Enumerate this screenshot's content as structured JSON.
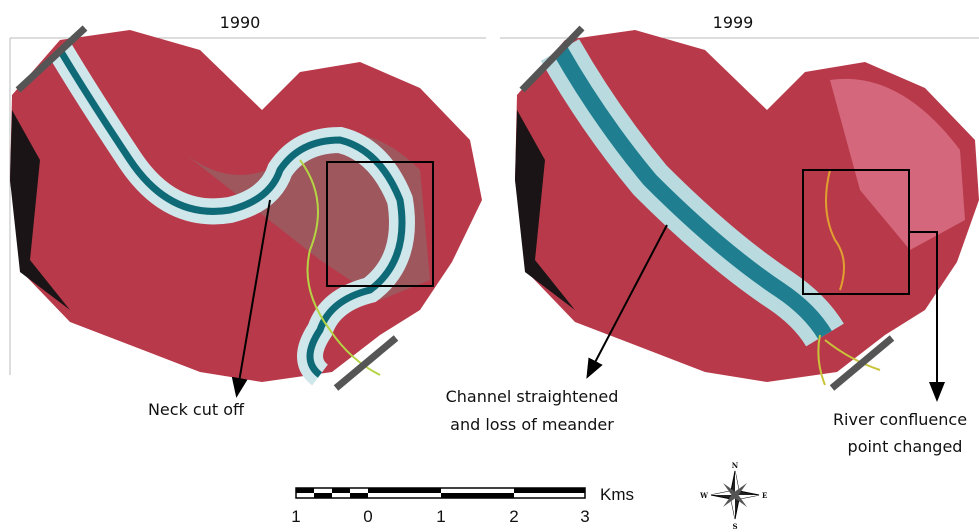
{
  "panels": [
    {
      "year": "1990",
      "annotations": [
        {
          "lines": [
            "Neck cut off"
          ]
        }
      ]
    },
    {
      "year": "1999",
      "annotations": [
        {
          "lines": [
            "Channel straightened",
            "and loss of meander"
          ]
        },
        {
          "lines": [
            "River confluence",
            "point changed"
          ]
        }
      ]
    }
  ],
  "scale_bar": {
    "unit": "Kms",
    "labels": [
      "1",
      "0",
      "1",
      "2",
      "3"
    ]
  },
  "compass": {
    "n": "N",
    "s": "S",
    "e": "E",
    "w": "W"
  }
}
